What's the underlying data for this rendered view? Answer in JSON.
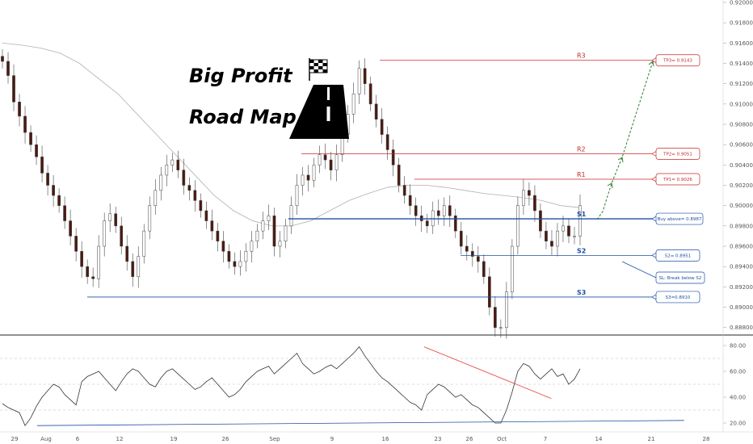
{
  "headline": {
    "line1": "Big Profit",
    "line2": "Road Map"
  },
  "chart_data": [
    {
      "type": "candlestick",
      "y_range": [
        0.8875,
        0.92
      ],
      "y_ticks": [
        "0.92000",
        "0.91800",
        "0.91600",
        "0.91400",
        "0.91200",
        "0.91000",
        "0.90800",
        "0.90600",
        "0.90400",
        "0.90200",
        "0.90000",
        "0.89800",
        "0.89600",
        "0.89400",
        "0.89200",
        "0.89000",
        "0.88800"
      ],
      "x_ticks": [
        "29",
        "Aug",
        "6",
        "12",
        "19",
        "26",
        "Sep",
        "9",
        "16",
        "23",
        "26",
        "Oct",
        "7",
        "14",
        "21",
        "28"
      ],
      "levels": [
        {
          "label": "R3",
          "value": 0.9143,
          "color": "#c62828"
        },
        {
          "label": "R2",
          "value": 0.9051,
          "color": "#c62828"
        },
        {
          "label": "R1",
          "value": 0.9026,
          "color": "#c62828"
        },
        {
          "label": "S1",
          "value": 0.8987,
          "color": "#1e4fa5"
        },
        {
          "label": "S2",
          "value": 0.8951,
          "color": "#1e4fa5"
        },
        {
          "label": "S3",
          "value": 0.891,
          "color": "#1e4fa5"
        }
      ],
      "callouts": [
        {
          "text": "TP3= 0.9143",
          "color": "#c62828"
        },
        {
          "text": "TP2= 0.9051",
          "color": "#c62828"
        },
        {
          "text": "TP1= 0.9026",
          "color": "#c62828"
        },
        {
          "text": "Buy above= 0.8987",
          "color": "#1e4fa5"
        },
        {
          "text": "S2= 0.8951",
          "color": "#1e4fa5"
        },
        {
          "text": "SL: Break below S2",
          "color": "#1e4fa5"
        },
        {
          "text": "S3=0.8910",
          "color": "#1e4fa5"
        }
      ],
      "closes": [
        0.9142,
        0.9128,
        0.9102,
        0.9088,
        0.9072,
        0.906,
        0.9048,
        0.9032,
        0.902,
        0.901,
        0.9,
        0.8985,
        0.897,
        0.8955,
        0.894,
        0.893,
        0.8928,
        0.896,
        0.8985,
        0.8992,
        0.898,
        0.896,
        0.8945,
        0.893,
        0.895,
        0.8975,
        0.9,
        0.9015,
        0.903,
        0.904,
        0.9045,
        0.9035,
        0.902,
        0.9015,
        0.9005,
        0.8995,
        0.8985,
        0.8975,
        0.8965,
        0.8955,
        0.8945,
        0.894,
        0.8945,
        0.8955,
        0.8965,
        0.8975,
        0.8985,
        0.899,
        0.896,
        0.8965,
        0.898,
        0.9,
        0.902,
        0.903,
        0.9025,
        0.904,
        0.905,
        0.9045,
        0.9035,
        0.905,
        0.907,
        0.909,
        0.911,
        0.9135,
        0.912,
        0.91,
        0.9085,
        0.907,
        0.9055,
        0.904,
        0.902,
        0.901,
        0.9,
        0.899,
        0.8985,
        0.898,
        0.8995,
        0.899,
        0.9,
        0.899,
        0.8975,
        0.896,
        0.8955,
        0.895,
        0.8945,
        0.893,
        0.89,
        0.888,
        0.888,
        0.8915,
        0.896,
        0.9,
        0.9015,
        0.901,
        0.8995,
        0.8975,
        0.8965,
        0.896,
        0.8975,
        0.898,
        0.897,
        0.897,
        0.9
      ],
      "moving_average": [
        0.916,
        0.9158,
        0.9155,
        0.915,
        0.914,
        0.9125,
        0.911,
        0.909,
        0.907,
        0.905,
        0.903,
        0.901,
        0.8995,
        0.8985,
        0.898,
        0.898,
        0.8985,
        0.8995,
        0.9005,
        0.9012,
        0.9018,
        0.902,
        0.902,
        0.9018,
        0.9015,
        0.9012,
        0.901,
        0.9008,
        0.9005,
        0.9,
        0.8998
      ]
    },
    {
      "type": "line",
      "y_range": [
        15,
        85
      ],
      "y_ticks": [
        "80.00",
        "60.00",
        "40.00",
        "20.00"
      ],
      "dashed_levels": [
        70,
        50,
        30
      ],
      "values": [
        35,
        32,
        30,
        28,
        18,
        24,
        33,
        40,
        45,
        50,
        48,
        42,
        38,
        34,
        52,
        56,
        58,
        60,
        55,
        50,
        45,
        52,
        58,
        62,
        60,
        55,
        50,
        48,
        55,
        60,
        62,
        58,
        54,
        50,
        46,
        48,
        52,
        55,
        50,
        45,
        40,
        42,
        46,
        52,
        56,
        60,
        62,
        64,
        58,
        62,
        66,
        70,
        74,
        66,
        62,
        58,
        60,
        63,
        65,
        62,
        66,
        70,
        74,
        79,
        72,
        66,
        60,
        55,
        52,
        48,
        44,
        40,
        36,
        34,
        30,
        42,
        46,
        50,
        48,
        44,
        40,
        42,
        38,
        34,
        32,
        28,
        24,
        20,
        20,
        30,
        44,
        60,
        66,
        64,
        58,
        54,
        58,
        62,
        56,
        58,
        50,
        54,
        62
      ],
      "trendlines": [
        {
          "color": "#e53935",
          "from": [
            0.73,
            79
          ],
          "to": [
            0.95,
            39
          ]
        },
        {
          "color": "#1e4fa5",
          "from": [
            0.06,
            18
          ],
          "to": [
            1.18,
            22
          ]
        }
      ]
    }
  ]
}
